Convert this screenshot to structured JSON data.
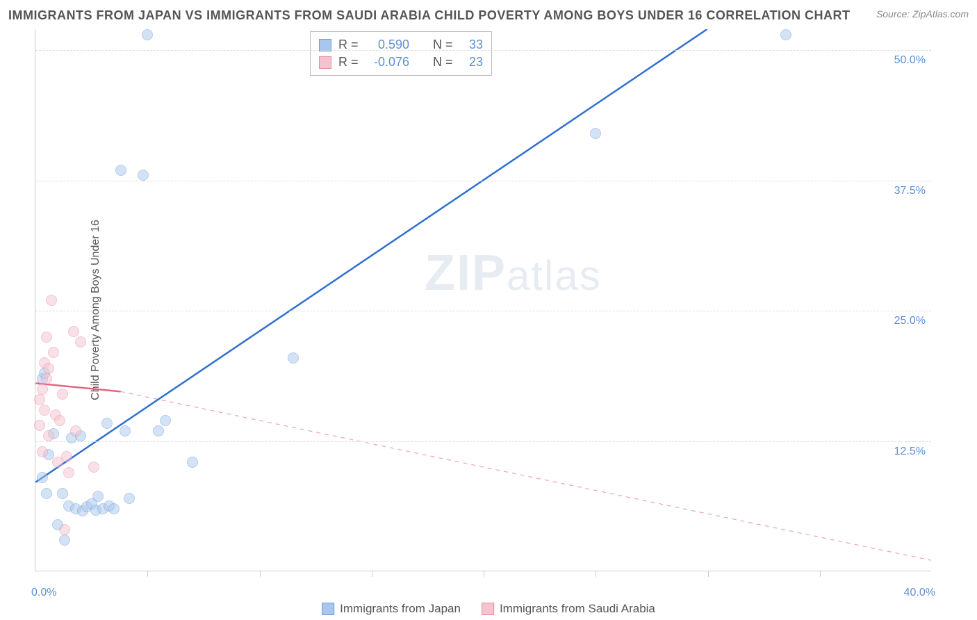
{
  "title": "IMMIGRANTS FROM JAPAN VS IMMIGRANTS FROM SAUDI ARABIA CHILD POVERTY AMONG BOYS UNDER 16 CORRELATION CHART",
  "source": "Source: ZipAtlas.com",
  "ylabel": "Child Poverty Among Boys Under 16",
  "watermark_zip": "ZIP",
  "watermark_atlas": "atlas",
  "chart": {
    "type": "scatter",
    "background_color": "#ffffff",
    "grid_color": "#dddddd",
    "axis_color": "#cccccc",
    "text_color": "#555555",
    "tick_color": "#5b8fd6",
    "xlim": [
      0,
      40
    ],
    "ylim": [
      0,
      52
    ],
    "xticks": [
      0,
      40
    ],
    "xtick_labels": [
      "0.0%",
      "40.0%"
    ],
    "xminor": [
      5,
      10,
      15,
      20,
      25,
      30,
      35
    ],
    "yticks": [
      12.5,
      25.0,
      37.5,
      50.0
    ],
    "ytick_labels": [
      "12.5%",
      "25.0%",
      "37.5%",
      "50.0%"
    ],
    "marker_size": 16,
    "marker_opacity": 0.5,
    "line_width_solid": 2.5,
    "line_width_dash": 1.2
  },
  "series": [
    {
      "key": "japan",
      "label": "Immigrants from Japan",
      "color_fill": "#a9c7ec",
      "color_stroke": "#6b9dd8",
      "line_color": "#2e6fd0",
      "R": "0.590",
      "N": "33",
      "points": [
        [
          0.3,
          9.0
        ],
        [
          0.3,
          18.5
        ],
        [
          0.4,
          19.0
        ],
        [
          0.5,
          7.5
        ],
        [
          0.6,
          11.2
        ],
        [
          0.8,
          13.2
        ],
        [
          1.0,
          4.5
        ],
        [
          1.2,
          7.5
        ],
        [
          1.3,
          3.0
        ],
        [
          1.5,
          6.3
        ],
        [
          1.6,
          12.8
        ],
        [
          1.8,
          6.0
        ],
        [
          2.0,
          13.0
        ],
        [
          2.1,
          5.8
        ],
        [
          2.3,
          6.2
        ],
        [
          2.5,
          6.5
        ],
        [
          2.7,
          5.9
        ],
        [
          2.8,
          7.2
        ],
        [
          3.0,
          6.0
        ],
        [
          3.2,
          14.2
        ],
        [
          3.3,
          6.3
        ],
        [
          3.5,
          6.0
        ],
        [
          3.8,
          38.5
        ],
        [
          4.0,
          13.5
        ],
        [
          4.2,
          7.0
        ],
        [
          4.8,
          38.0
        ],
        [
          5.0,
          51.5
        ],
        [
          5.5,
          13.5
        ],
        [
          5.8,
          14.5
        ],
        [
          7.0,
          10.5
        ],
        [
          11.5,
          20.5
        ],
        [
          25.0,
          42.0
        ],
        [
          33.5,
          51.5
        ]
      ],
      "trend": {
        "x1": 0,
        "y1": 8.5,
        "x2": 30,
        "y2": 52
      },
      "dash_extend": null
    },
    {
      "key": "saudi",
      "label": "Immigrants from Saudi Arabia",
      "color_fill": "#f5c3ce",
      "color_stroke": "#e88ba0",
      "line_color": "#e26681",
      "R": "-0.076",
      "N": "23",
      "points": [
        [
          0.2,
          16.5
        ],
        [
          0.2,
          14.0
        ],
        [
          0.3,
          11.5
        ],
        [
          0.3,
          17.5
        ],
        [
          0.4,
          20.0
        ],
        [
          0.4,
          15.5
        ],
        [
          0.5,
          22.5
        ],
        [
          0.5,
          18.5
        ],
        [
          0.6,
          19.5
        ],
        [
          0.6,
          13.0
        ],
        [
          0.7,
          26.0
        ],
        [
          0.8,
          21.0
        ],
        [
          0.9,
          15.0
        ],
        [
          1.0,
          10.5
        ],
        [
          1.1,
          14.5
        ],
        [
          1.2,
          17.0
        ],
        [
          1.3,
          4.0
        ],
        [
          1.4,
          11.0
        ],
        [
          1.5,
          9.5
        ],
        [
          1.7,
          23.0
        ],
        [
          1.8,
          13.5
        ],
        [
          2.0,
          22.0
        ],
        [
          2.6,
          10.0
        ]
      ],
      "trend": {
        "x1": 0,
        "y1": 18.0,
        "x2": 3.8,
        "y2": 17.2
      },
      "dash_extend": {
        "x1": 3.8,
        "y1": 17.2,
        "x2": 40,
        "y2": 1.0
      }
    }
  ],
  "stats_labels": {
    "R": "R =",
    "N": "N ="
  },
  "legend_position": "bottom"
}
